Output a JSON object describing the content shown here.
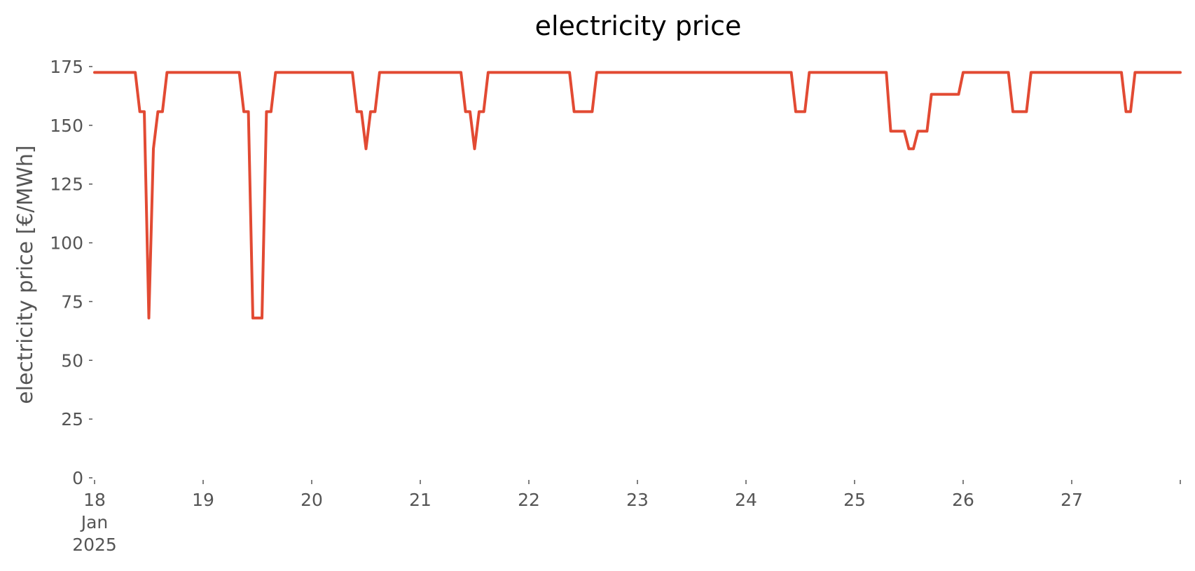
{
  "chart_data": {
    "type": "line",
    "title": "electricity price",
    "xlabel": "",
    "ylabel": "electricity price [€/MWh]",
    "x_tick_labels": [
      {
        "value": 0,
        "lines": [
          "18",
          "Jan",
          "2025"
        ]
      },
      {
        "value": 1,
        "lines": [
          "19"
        ]
      },
      {
        "value": 2,
        "lines": [
          "20"
        ]
      },
      {
        "value": 3,
        "lines": [
          "21"
        ]
      },
      {
        "value": 4,
        "lines": [
          "22"
        ]
      },
      {
        "value": 5,
        "lines": [
          "23"
        ]
      },
      {
        "value": 6,
        "lines": [
          "24"
        ]
      },
      {
        "value": 7,
        "lines": [
          "25"
        ]
      },
      {
        "value": 8,
        "lines": [
          "26"
        ]
      },
      {
        "value": 9,
        "lines": [
          "27"
        ]
      }
    ],
    "y_ticks": [
      0,
      25,
      50,
      75,
      100,
      125,
      150,
      175
    ],
    "xlim": [
      0,
      10
    ],
    "ylim": [
      0,
      175
    ],
    "grid": false,
    "line_color": "#E24A33",
    "series": [
      {
        "x": [
          0,
          0.375,
          0.417,
          0.458,
          0.5,
          0.542,
          0.583,
          0.625,
          0.667,
          1.333,
          1.375,
          1.417,
          1.458,
          1.5,
          1.542,
          1.583,
          1.625,
          1.667,
          2.375,
          2.417,
          2.458,
          2.5,
          2.542,
          2.583,
          2.625,
          3.375,
          3.417,
          3.458,
          3.5,
          3.542,
          3.583,
          3.625,
          4.375,
          4.417,
          4.458,
          4.5,
          4.542,
          4.583,
          4.625,
          6.417,
          6.458,
          6.5,
          6.542,
          6.583,
          7.292,
          7.333,
          7.375,
          7.417,
          7.458,
          7.5,
          7.542,
          7.583,
          7.625,
          7.667,
          7.708,
          7.75,
          7.792,
          7.833,
          7.875,
          7.917,
          7.958,
          8,
          8.417,
          8.458,
          8.5,
          8.542,
          8.583,
          8.625,
          9.458,
          9.5,
          9.542,
          9.583,
          9.625,
          10
        ],
        "y": [
          172.5,
          172.5,
          155.8,
          155.8,
          68,
          140,
          155.8,
          155.8,
          172.5,
          172.5,
          155.8,
          155.8,
          68,
          68,
          68,
          155.8,
          155.8,
          172.5,
          172.5,
          155.8,
          155.8,
          140,
          155.8,
          155.8,
          172.5,
          172.5,
          155.8,
          155.8,
          140,
          155.8,
          155.8,
          172.5,
          172.5,
          155.8,
          155.8,
          155.8,
          155.8,
          155.8,
          172.5,
          172.5,
          155.8,
          155.8,
          155.8,
          172.5,
          172.5,
          147.5,
          147.5,
          147.5,
          147.5,
          140,
          140,
          147.5,
          147.5,
          147.5,
          163.2,
          163.2,
          163.2,
          163.2,
          163.2,
          163.2,
          163.2,
          172.5,
          172.5,
          155.8,
          155.8,
          155.8,
          155.8,
          172.5,
          172.5,
          155.8,
          155.8,
          172.5,
          172.5,
          172.5
        ]
      }
    ]
  }
}
